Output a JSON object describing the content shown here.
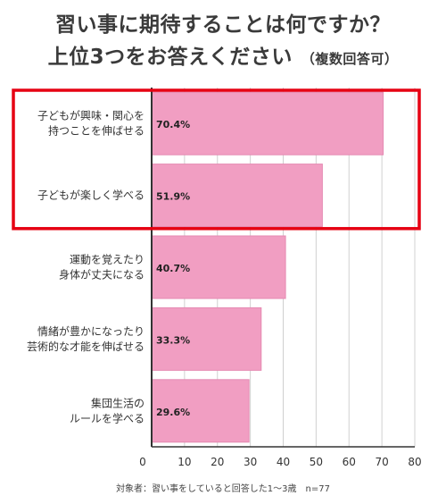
{
  "title": {
    "line1": "習い事に期待することは何ですか？",
    "line2": "上位3つをお答えください",
    "note": "（複数回答可）"
  },
  "chart_data": {
    "type": "bar",
    "orientation": "horizontal",
    "categories": [
      [
        "子どもが興味・関心を",
        "持つことを伸ばせる"
      ],
      [
        "子どもが楽しく学べる"
      ],
      [
        "運動を覚えたり",
        "身体が丈夫になる"
      ],
      [
        "情緒が豊かになったり",
        "芸術的な才能を伸ばせる"
      ],
      [
        "集団生活の",
        "ルールを学べる"
      ]
    ],
    "values": [
      70.4,
      51.9,
      40.7,
      33.3,
      29.6
    ],
    "data_labels": [
      "70.4%",
      "51.9%",
      "40.7%",
      "33.3%",
      "29.6%"
    ],
    "xlim": [
      0,
      80
    ],
    "xticks": [
      "0",
      "10",
      "20",
      "30",
      "40",
      "50",
      "60",
      "70",
      "80"
    ],
    "grid": true,
    "highlight_top_n": 2,
    "colors": {
      "bar": "#f19ec2",
      "bar_edge": "#e58ab2",
      "highlight": "#e60012",
      "grid": "#d0d0d0",
      "axis": "#333333"
    }
  },
  "footnote": "対象者：習い事をしていると回答した1〜3歳　n=77"
}
